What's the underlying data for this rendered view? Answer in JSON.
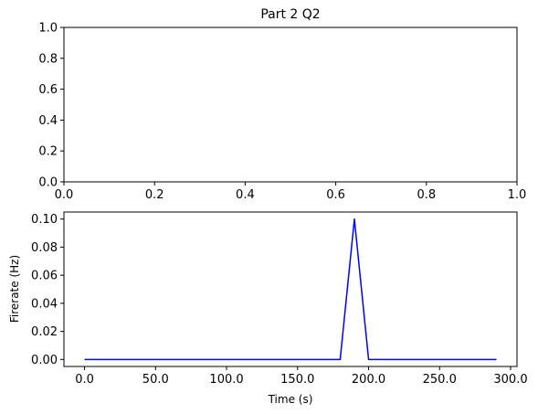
{
  "chart_data": [
    {
      "type": "line",
      "title": "Part 2 Q2",
      "xlabel": "",
      "ylabel": "",
      "xlim": [
        0,
        1
      ],
      "ylim": [
        0,
        1
      ],
      "x_ticks": [
        "0.0",
        "0.2",
        "0.4",
        "0.6",
        "0.8",
        "1.0"
      ],
      "y_ticks": [
        "0.0",
        "0.2",
        "0.4",
        "0.6",
        "0.8",
        "1.0"
      ],
      "series": [],
      "grid": false
    },
    {
      "type": "line",
      "title": "",
      "xlabel": "Time (s)",
      "ylabel": "Firerate (Hz)",
      "xlim": [
        -14.5,
        304.5
      ],
      "ylim": [
        -0.005,
        0.105
      ],
      "x_ticks": [
        "0.0",
        "50.0",
        "100.0",
        "150.0",
        "200.0",
        "250.0",
        "300.0"
      ],
      "y_ticks": [
        "0.00",
        "0.02",
        "0.04",
        "0.06",
        "0.08",
        "0.10"
      ],
      "series": [
        {
          "color": "#0000ff",
          "x": [
            0,
            10,
            20,
            30,
            40,
            50,
            60,
            70,
            80,
            90,
            100,
            110,
            120,
            130,
            140,
            150,
            160,
            170,
            180,
            190,
            200,
            210,
            220,
            230,
            240,
            250,
            260,
            270,
            280,
            290
          ],
          "y": [
            0,
            0,
            0,
            0,
            0,
            0,
            0,
            0,
            0,
            0,
            0,
            0,
            0,
            0,
            0,
            0,
            0,
            0,
            0,
            0.1,
            0,
            0,
            0,
            0,
            0,
            0,
            0,
            0,
            0,
            0
          ]
        }
      ],
      "grid": false
    }
  ]
}
